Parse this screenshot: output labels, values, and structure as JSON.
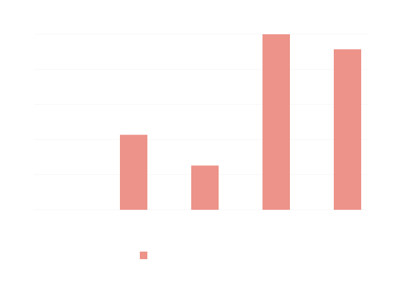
{
  "chart_data": {
    "type": "bar",
    "title": "",
    "xlabel": "",
    "ylabel": "",
    "categories": [
      "",
      "",
      "",
      "",
      ""
    ],
    "ylim": [
      0,
      230
    ],
    "grid": "horizontal",
    "series": [
      {
        "name": "",
        "color": "#ed9389",
        "values": [
          0,
          100,
          59,
          234,
          214
        ]
      }
    ],
    "legend": {
      "position": "bottom-center"
    }
  }
}
